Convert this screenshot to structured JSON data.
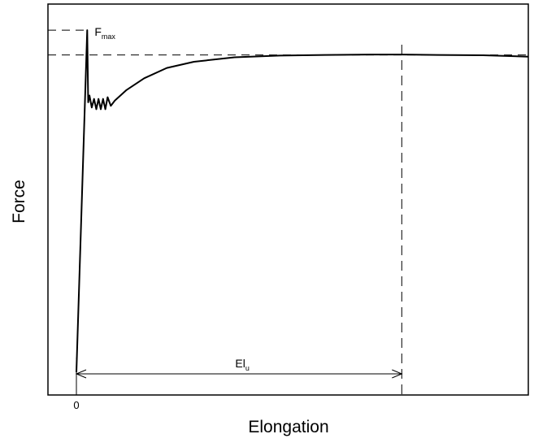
{
  "chart_data": {
    "type": "line",
    "xlabel": "Elongation",
    "ylabel": "Force",
    "x_tick_labels": [
      "0"
    ],
    "annotations": {
      "fmax": {
        "main": "F",
        "sub": "max"
      },
      "elu": {
        "main": "El",
        "sub": "u"
      }
    },
    "xlim": [
      0,
      100
    ],
    "ylim": [
      0,
      100
    ],
    "grid": false,
    "series": [
      {
        "x": [
          0,
          2.4,
          2.6,
          2.9,
          3.4,
          3.9,
          4.4,
          4.9,
          5.4,
          5.9,
          6.4,
          6.9,
          7.6,
          8.5,
          11,
          15,
          20,
          26,
          35,
          45,
          55,
          65,
          72,
          80,
          90,
          100
        ],
        "y": [
          0,
          99.5,
          78.5,
          80.5,
          77.0,
          79.5,
          76.5,
          79.5,
          76.5,
          79.5,
          76.5,
          80.0,
          77.5,
          79.0,
          82.0,
          85.5,
          88.5,
          90.3,
          91.6,
          92.1,
          92.3,
          92.4,
          92.4,
          92.3,
          92.2,
          91.8
        ]
      }
    ],
    "reference_lines": {
      "fmax_level_y": 99.5,
      "plateau_y": 92.3,
      "elu_end_x": 72
    }
  }
}
